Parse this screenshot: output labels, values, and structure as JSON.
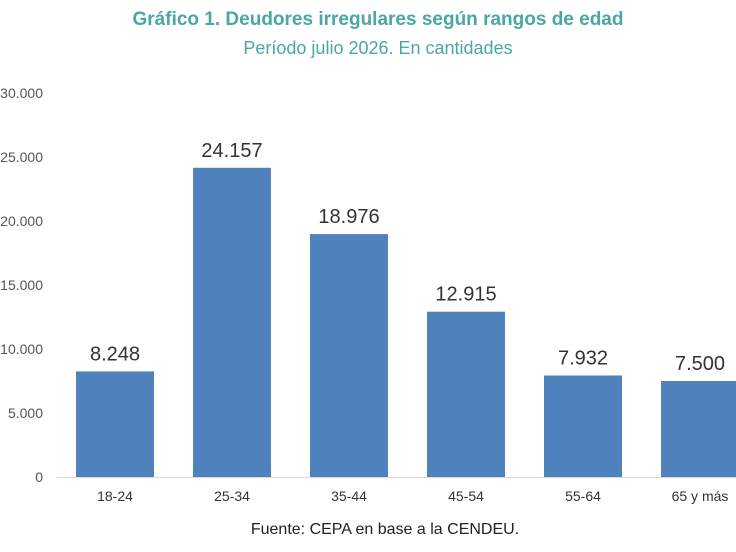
{
  "header": {
    "title": "Gráfico 1. Deudores irregulares según rangos de edad",
    "subtitle": "Período julio 2026. En cantidades"
  },
  "footer": {
    "source": "Fuente: CEPA en base a la CENDEU."
  },
  "colors": {
    "title": "#4aa7a6",
    "bar": "#4f81bd"
  },
  "chart_data": {
    "type": "bar",
    "title": "Gráfico 1. Deudores irregulares según rangos de edad",
    "subtitle": "Período julio 2026. En cantidades",
    "categories": [
      "18-24",
      "25-34",
      "35-44",
      "45-54",
      "55-64",
      "65 y más"
    ],
    "values": [
      8248,
      24157,
      18976,
      12915,
      7932,
      7500
    ],
    "data_labels": [
      "8.248",
      "24.157",
      "18.976",
      "12.915",
      "7.932",
      "7.500"
    ],
    "ylim": [
      0,
      30000
    ],
    "yticks": [
      0,
      5000,
      10000,
      15000,
      20000,
      25000,
      30000
    ],
    "ytick_labels": [
      "0",
      "5.000",
      "10.000",
      "15.000",
      "20.000",
      "25.000",
      "30.000"
    ],
    "grid": false,
    "legend": "none"
  }
}
